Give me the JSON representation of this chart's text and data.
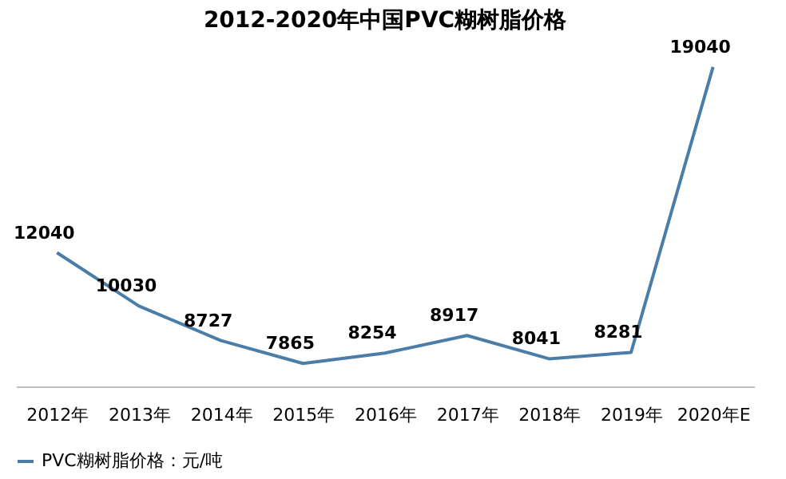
{
  "chart_data": {
    "type": "line",
    "title": "2012-2020年中国PVC糊树脂价格",
    "categories": [
      "2012年",
      "2013年",
      "2014年",
      "2015年",
      "2016年",
      "2017年",
      "2018年",
      "2019年",
      "2020年E"
    ],
    "series": [
      {
        "name": "PVC糊树脂价格：元/吨",
        "color": "#4a7ea8",
        "values": [
          12040,
          10030,
          8727,
          7865,
          8254,
          8917,
          8041,
          8281,
          19040
        ]
      }
    ],
    "data_labels": true,
    "legend": "bottom",
    "grid": false,
    "marker": "none",
    "line_style": "solid",
    "tick_labels": "x"
  }
}
